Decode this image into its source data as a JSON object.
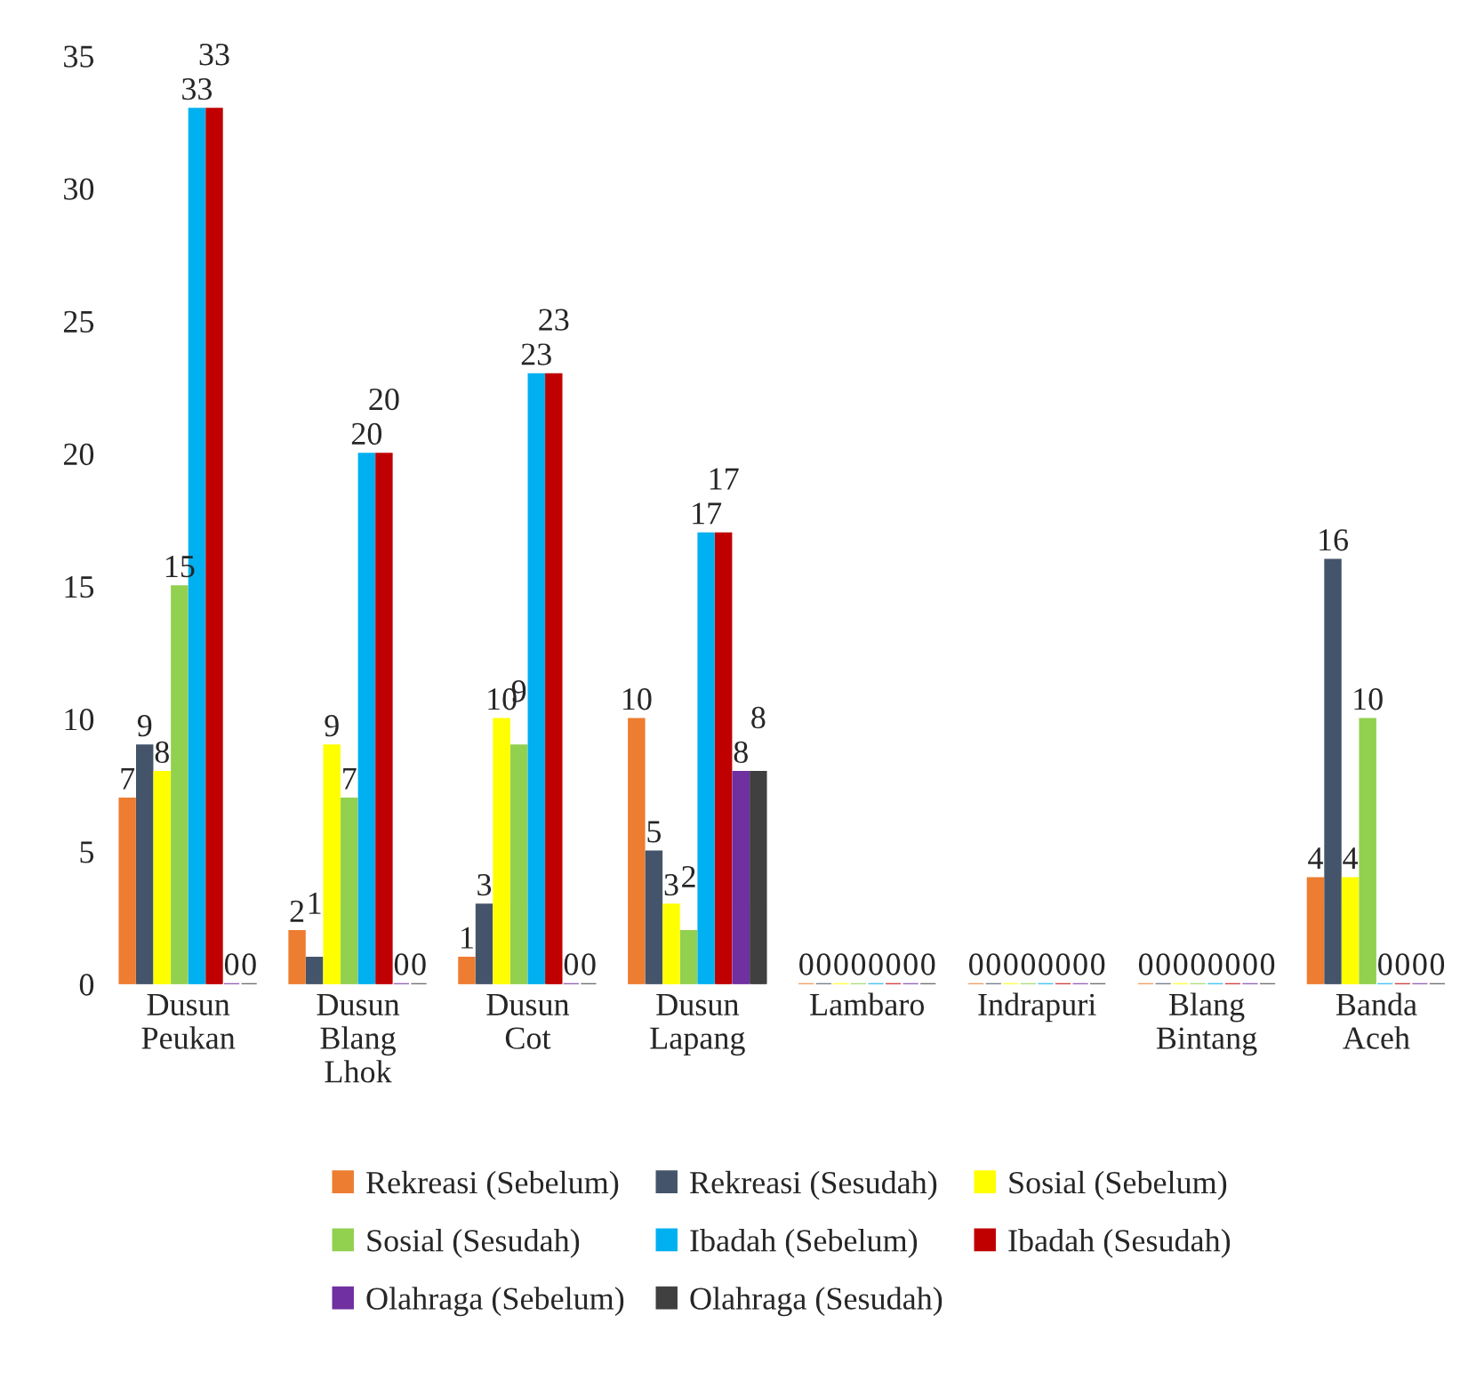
{
  "chart_data": {
    "type": "bar",
    "categories": [
      "Dusun\nPeukan",
      "Dusun\nBlang\nLhok",
      "Dusun\nCot",
      "Dusun\nLapang",
      "Lambaro",
      "Indrapuri",
      "Blang\nBintang",
      "Banda\nAceh"
    ],
    "series": [
      {
        "name": "Rekreasi (Sebelum)",
        "color": "#ed7d31",
        "values": [
          7,
          2,
          1,
          10,
          0,
          0,
          0,
          4
        ]
      },
      {
        "name": "Rekreasi (Sesudah)",
        "color": "#44546a",
        "values": [
          9,
          1,
          3,
          5,
          0,
          0,
          0,
          16
        ]
      },
      {
        "name": "Sosial (Sebelum)",
        "color": "#ffff00",
        "values": [
          8,
          9,
          10,
          3,
          0,
          0,
          0,
          4
        ]
      },
      {
        "name": "Sosial (Sesudah)",
        "color": "#92d050",
        "values": [
          15,
          7,
          9,
          2,
          0,
          0,
          0,
          10
        ]
      },
      {
        "name": "Ibadah (Sebelum)",
        "color": "#00b0f0",
        "values": [
          33,
          20,
          23,
          17,
          0,
          0,
          0,
          0
        ]
      },
      {
        "name": "Ibadah (Sesudah)",
        "color": "#c00000",
        "values": [
          33,
          20,
          23,
          17,
          0,
          0,
          0,
          0
        ]
      },
      {
        "name": "Olahraga (Sebelum)",
        "color": "#7030a0",
        "values": [
          0,
          0,
          0,
          8,
          0,
          0,
          0,
          0
        ]
      },
      {
        "name": "Olahraga (Sesudah)",
        "color": "#404040",
        "values": [
          0,
          0,
          0,
          8,
          0,
          0,
          0,
          0
        ]
      }
    ],
    "ylim": [
      0,
      35
    ],
    "yticks": [
      0,
      5,
      10,
      15,
      20,
      25,
      30,
      35
    ],
    "data_labels": true,
    "legend": "bottom",
    "grid": false
  }
}
